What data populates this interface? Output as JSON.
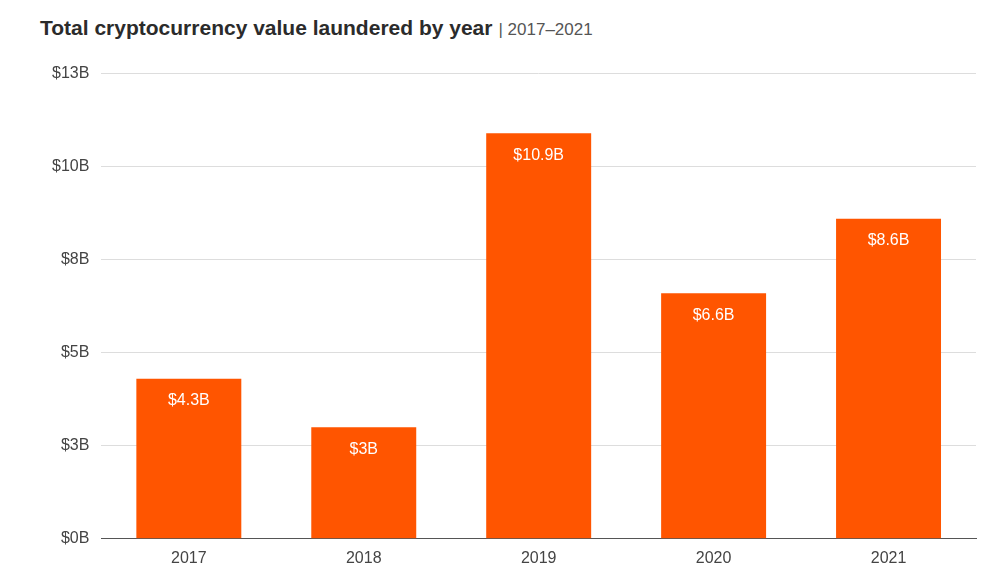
{
  "chart_data": {
    "type": "bar",
    "title": "Total cryptocurrency value laundered by year",
    "subtitle": "| 2017–2021",
    "categories": [
      "2017",
      "2018",
      "2019",
      "2020",
      "2021"
    ],
    "values": [
      4.3,
      3,
      10.9,
      6.6,
      8.6
    ],
    "value_labels": [
      "$4.3B",
      "$3B",
      "$10.9B",
      "$6.6B",
      "$8.6B"
    ],
    "data_labels": true,
    "color": "#ff5500",
    "ylim": [
      0,
      12.5
    ],
    "yticks": [
      {
        "value": 0,
        "label": "$0B"
      },
      {
        "value": 2.5,
        "label": "$3B"
      },
      {
        "value": 5,
        "label": "$5B"
      },
      {
        "value": 7.5,
        "label": "$8B"
      },
      {
        "value": 10,
        "label": "$10B"
      },
      {
        "value": 12.5,
        "label": "$13B"
      }
    ],
    "grid": true
  }
}
